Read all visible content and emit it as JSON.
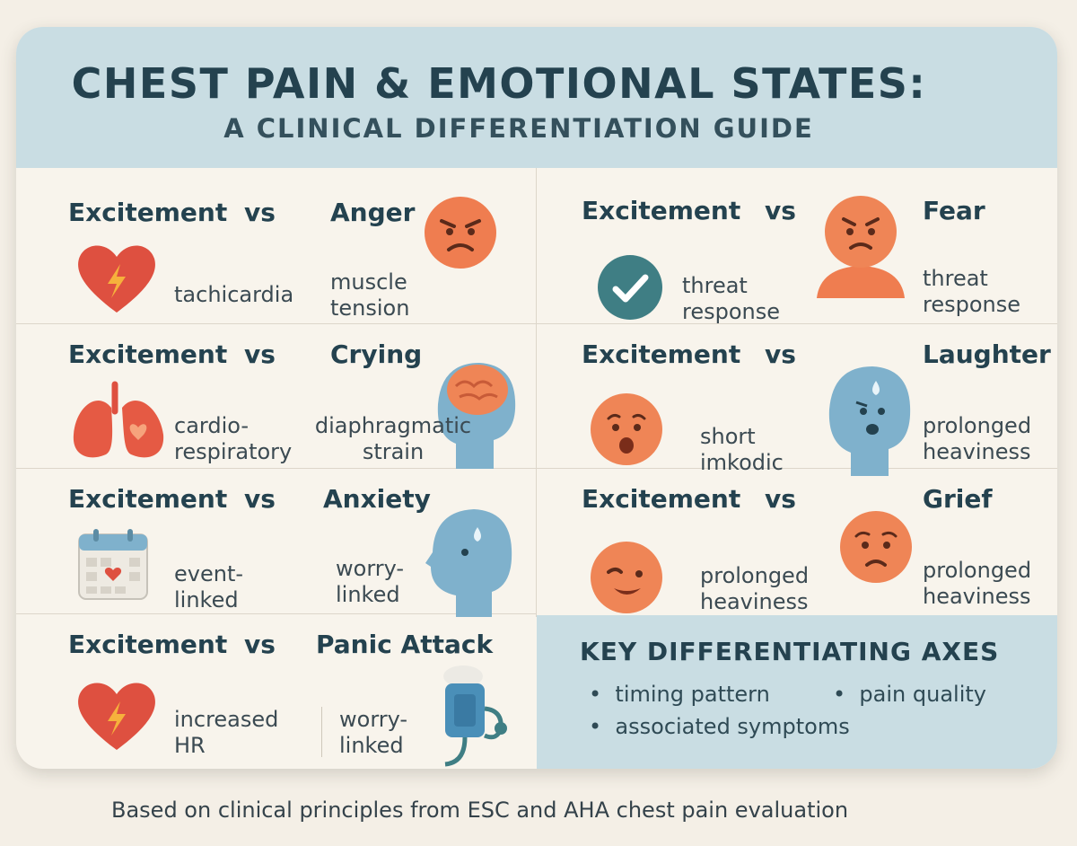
{
  "title": "CHEST PAIN & EMOTIONAL STATES:",
  "subtitle": "A CLINICAL DIFFERENTIATION GUIDE",
  "comparisons": [
    {
      "left_label": "Excitement",
      "vs": "vs",
      "right_label": "Anger",
      "left_desc": "tachicardia",
      "right_desc": "muscle tension",
      "left_icon": "heart-lightning-icon",
      "right_icon": "angry-face-icon"
    },
    {
      "left_label": "Excitement",
      "vs": "vs",
      "right_label": "Fear",
      "left_desc": "threat response",
      "right_desc": "threat response",
      "left_icon": "checkmark-icon",
      "right_icon": "fearful-person-icon"
    },
    {
      "left_label": "Excitement",
      "vs": "vs",
      "right_label": "Crying",
      "left_desc": "cardio-respiratory",
      "right_desc": "diaphragmatic strain",
      "left_icon": "lungs-icon",
      "right_icon": "brain-head-icon"
    },
    {
      "left_label": "Excitement",
      "vs": "vs",
      "right_label": "Laughter",
      "left_desc": "short imkodic",
      "right_desc": "prolonged heaviness",
      "left_icon": "worried-face-icon",
      "right_icon": "sweating-head-icon"
    },
    {
      "left_label": "Excitement",
      "vs": "vs",
      "right_label": "Anxiety",
      "left_desc": "event-linked",
      "right_desc": "worry-linked",
      "left_icon": "calendar-heart-icon",
      "right_icon": "anxious-head-icon"
    },
    {
      "left_label": "Excitement",
      "vs": "vs",
      "right_label": "Grief",
      "left_desc": "prolonged heaviness",
      "right_desc": "prolonged heaviness",
      "left_icon": "winking-face-icon",
      "right_icon": "sad-face-icon"
    },
    {
      "left_label": "Excitement",
      "vs": "vs",
      "right_label": "Panic Attack",
      "left_desc": "increased HR",
      "right_desc": "worry-linked",
      "left_icon": "heart-lightning-icon",
      "right_icon": "blood-pressure-monitor-icon"
    }
  ],
  "key": {
    "title": "KEY DIFFERENTIATING  AXES",
    "bullet": "•",
    "items": [
      "timing pattern",
      "pain quality",
      "associated symptoms"
    ]
  },
  "footer": "Based on clinical principles from ESC and AHA chest pain evaluation",
  "colors": {
    "header_bg": "#c9dde3",
    "text_dark": "#24424f",
    "accent_orange": "#ef8556",
    "accent_red": "#de5040",
    "accent_blue": "#7fb1cc",
    "accent_teal": "#3f7e84"
  }
}
